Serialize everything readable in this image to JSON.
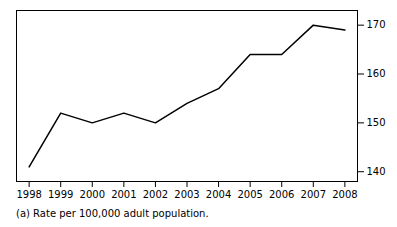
{
  "chart_data": {
    "type": "line",
    "x": [
      1998,
      1999,
      2000,
      2001,
      2002,
      2003,
      2004,
      2005,
      2006,
      2007,
      2008
    ],
    "values": [
      141,
      152,
      150,
      152,
      150,
      154,
      157,
      164,
      164,
      170,
      169
    ],
    "color": "#000000",
    "xlim": [
      1997.6,
      2008.4
    ],
    "ylim": [
      138,
      173
    ],
    "xticks": [
      1998,
      1999,
      2000,
      2001,
      2002,
      2003,
      2004,
      2005,
      2006,
      2007,
      2008
    ],
    "yticks": [
      140,
      150,
      160,
      170
    ],
    "grid": false,
    "footnote": "(a) Rate per 100,000 adult population."
  }
}
